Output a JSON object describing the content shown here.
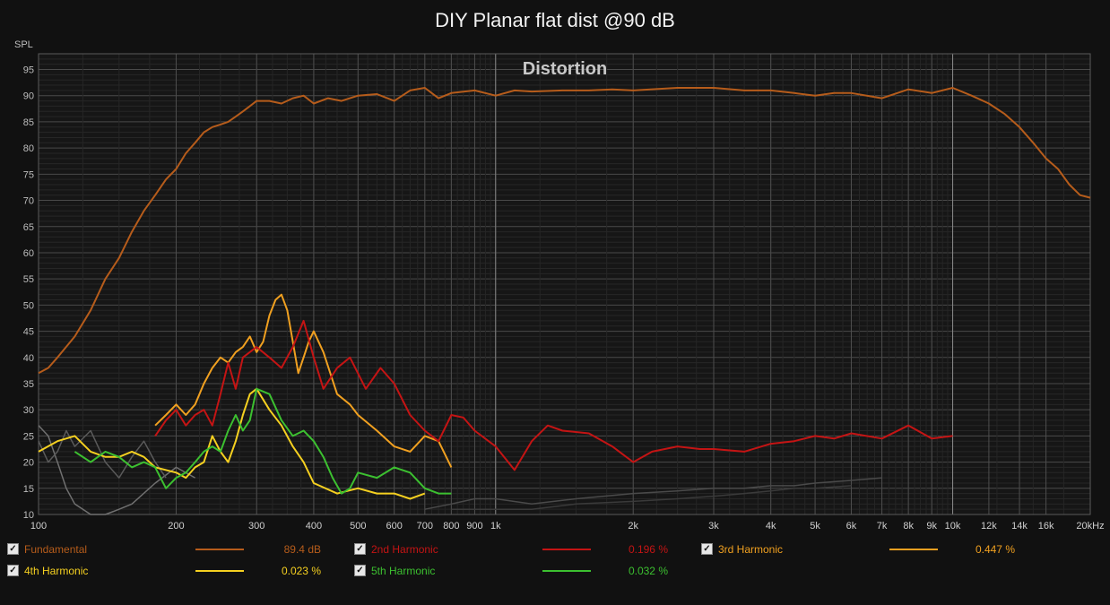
{
  "chart_data": {
    "type": "line",
    "title": "DIY Planar flat dist @90 dB",
    "annotation": "Distortion",
    "ylabel": "SPL",
    "x_scale": "log",
    "xlim": [
      100,
      20000
    ],
    "ylim": [
      10,
      98
    ],
    "grid": true,
    "x_ticks": [
      {
        "v": 100,
        "t": "100"
      },
      {
        "v": 200,
        "t": "200"
      },
      {
        "v": 300,
        "t": "300"
      },
      {
        "v": 400,
        "t": "400"
      },
      {
        "v": 500,
        "t": "500"
      },
      {
        "v": 600,
        "t": "600"
      },
      {
        "v": 700,
        "t": "700"
      },
      {
        "v": 800,
        "t": "800"
      },
      {
        "v": 900,
        "t": "900"
      },
      {
        "v": 1000,
        "t": "1k"
      },
      {
        "v": 2000,
        "t": "2k"
      },
      {
        "v": 3000,
        "t": "3k"
      },
      {
        "v": 4000,
        "t": "4k"
      },
      {
        "v": 5000,
        "t": "5k"
      },
      {
        "v": 6000,
        "t": "6k"
      },
      {
        "v": 7000,
        "t": "7k"
      },
      {
        "v": 8000,
        "t": "8k"
      },
      {
        "v": 9000,
        "t": "9k"
      },
      {
        "v": 10000,
        "t": "10k"
      },
      {
        "v": 12000,
        "t": "12k"
      },
      {
        "v": 14000,
        "t": "14k"
      },
      {
        "v": 16000,
        "t": "16k"
      },
      {
        "v": 20000,
        "t": "20kHz"
      }
    ],
    "y_ticks": [
      10,
      15,
      20,
      25,
      30,
      35,
      40,
      45,
      50,
      55,
      60,
      65,
      70,
      75,
      80,
      85,
      90,
      95
    ],
    "legend_position": "bottom",
    "series": [
      {
        "name": "Fundamental",
        "value": "89.4 dB",
        "color": "#b65c1b",
        "points": [
          [
            100,
            37
          ],
          [
            105,
            38
          ],
          [
            110,
            40
          ],
          [
            120,
            44
          ],
          [
            130,
            49
          ],
          [
            140,
            55
          ],
          [
            150,
            59
          ],
          [
            160,
            64
          ],
          [
            170,
            68
          ],
          [
            180,
            71
          ],
          [
            190,
            74
          ],
          [
            200,
            76
          ],
          [
            210,
            79
          ],
          [
            220,
            81
          ],
          [
            230,
            83
          ],
          [
            240,
            84
          ],
          [
            250,
            84.5
          ],
          [
            260,
            85
          ],
          [
            270,
            86
          ],
          [
            280,
            87
          ],
          [
            290,
            88
          ],
          [
            300,
            89
          ],
          [
            320,
            89
          ],
          [
            340,
            88.5
          ],
          [
            360,
            89.5
          ],
          [
            380,
            90
          ],
          [
            400,
            88.5
          ],
          [
            430,
            89.5
          ],
          [
            460,
            89
          ],
          [
            500,
            90
          ],
          [
            550,
            90.3
          ],
          [
            600,
            89
          ],
          [
            650,
            91
          ],
          [
            700,
            91.5
          ],
          [
            750,
            89.5
          ],
          [
            800,
            90.5
          ],
          [
            900,
            91
          ],
          [
            1000,
            90
          ],
          [
            1100,
            91
          ],
          [
            1200,
            90.8
          ],
          [
            1400,
            91
          ],
          [
            1600,
            91
          ],
          [
            1800,
            91.2
          ],
          [
            2000,
            91
          ],
          [
            2500,
            91.5
          ],
          [
            3000,
            91.5
          ],
          [
            3500,
            91
          ],
          [
            4000,
            91
          ],
          [
            4500,
            90.5
          ],
          [
            5000,
            90
          ],
          [
            5500,
            90.5
          ],
          [
            6000,
            90.5
          ],
          [
            7000,
            89.5
          ],
          [
            8000,
            91.2
          ],
          [
            9000,
            90.5
          ],
          [
            10000,
            91.5
          ],
          [
            11000,
            90
          ],
          [
            12000,
            88.5
          ],
          [
            13000,
            86.5
          ],
          [
            14000,
            84
          ],
          [
            15000,
            81
          ],
          [
            16000,
            78
          ],
          [
            17000,
            76
          ],
          [
            18000,
            73
          ],
          [
            19000,
            71
          ],
          [
            20000,
            70.5
          ]
        ]
      },
      {
        "name": "2nd Harmonic",
        "value": "0.196 %",
        "color": "#c41414",
        "points": [
          [
            180,
            25
          ],
          [
            190,
            28
          ],
          [
            200,
            30
          ],
          [
            210,
            27
          ],
          [
            220,
            29
          ],
          [
            230,
            30
          ],
          [
            240,
            27
          ],
          [
            250,
            33
          ],
          [
            260,
            39
          ],
          [
            270,
            34
          ],
          [
            280,
            40
          ],
          [
            300,
            42
          ],
          [
            320,
            40
          ],
          [
            340,
            38
          ],
          [
            360,
            42
          ],
          [
            380,
            47
          ],
          [
            400,
            40
          ],
          [
            420,
            34
          ],
          [
            450,
            38
          ],
          [
            480,
            40
          ],
          [
            520,
            34
          ],
          [
            560,
            38
          ],
          [
            600,
            35
          ],
          [
            650,
            29
          ],
          [
            700,
            26
          ],
          [
            750,
            24
          ],
          [
            800,
            29
          ],
          [
            850,
            28.5
          ],
          [
            900,
            26
          ],
          [
            1000,
            23
          ],
          [
            1100,
            18.5
          ],
          [
            1200,
            24
          ],
          [
            1300,
            27
          ],
          [
            1400,
            26
          ],
          [
            1600,
            25.5
          ],
          [
            1800,
            23
          ],
          [
            2000,
            20
          ],
          [
            2200,
            22
          ],
          [
            2500,
            23
          ],
          [
            2800,
            22.5
          ],
          [
            3000,
            22.5
          ],
          [
            3500,
            22
          ],
          [
            4000,
            23.5
          ],
          [
            4500,
            24
          ],
          [
            5000,
            25
          ],
          [
            5500,
            24.5
          ],
          [
            6000,
            25.5
          ],
          [
            7000,
            24.5
          ],
          [
            8000,
            27
          ],
          [
            9000,
            24.5
          ],
          [
            10000,
            25
          ]
        ]
      },
      {
        "name": "3rd Harmonic",
        "value": "0.447 %",
        "color": "#f0a020",
        "points": [
          [
            180,
            27
          ],
          [
            190,
            29
          ],
          [
            200,
            31
          ],
          [
            210,
            29
          ],
          [
            220,
            31
          ],
          [
            230,
            35
          ],
          [
            240,
            38
          ],
          [
            250,
            40
          ],
          [
            260,
            39
          ],
          [
            270,
            41
          ],
          [
            280,
            42
          ],
          [
            290,
            44
          ],
          [
            300,
            41
          ],
          [
            310,
            43
          ],
          [
            320,
            48
          ],
          [
            330,
            51
          ],
          [
            340,
            52
          ],
          [
            350,
            49
          ],
          [
            360,
            43
          ],
          [
            370,
            37
          ],
          [
            380,
            40
          ],
          [
            390,
            43
          ],
          [
            400,
            45
          ],
          [
            420,
            41
          ],
          [
            450,
            33
          ],
          [
            480,
            31
          ],
          [
            500,
            29
          ],
          [
            550,
            26
          ],
          [
            600,
            23
          ],
          [
            650,
            22
          ],
          [
            700,
            25
          ],
          [
            750,
            24
          ],
          [
            800,
            19
          ]
        ]
      },
      {
        "name": "4th Harmonic",
        "value": "0.023 %",
        "color": "#f5d020",
        "points": [
          [
            100,
            22
          ],
          [
            110,
            24
          ],
          [
            120,
            25
          ],
          [
            130,
            22
          ],
          [
            140,
            21
          ],
          [
            150,
            21
          ],
          [
            160,
            22
          ],
          [
            170,
            21
          ],
          [
            180,
            19
          ],
          [
            200,
            18
          ],
          [
            210,
            17
          ],
          [
            220,
            19
          ],
          [
            230,
            20
          ],
          [
            240,
            25
          ],
          [
            250,
            22
          ],
          [
            260,
            20
          ],
          [
            270,
            24
          ],
          [
            280,
            29
          ],
          [
            290,
            33
          ],
          [
            300,
            34
          ],
          [
            320,
            30
          ],
          [
            340,
            27
          ],
          [
            360,
            23
          ],
          [
            380,
            20
          ],
          [
            400,
            16
          ],
          [
            450,
            14
          ],
          [
            500,
            15
          ],
          [
            550,
            14
          ],
          [
            600,
            14
          ],
          [
            650,
            13
          ],
          [
            700,
            14
          ]
        ]
      },
      {
        "name": "5th Harmonic",
        "value": "0.032 %",
        "color": "#3cc030",
        "points": [
          [
            120,
            22
          ],
          [
            130,
            20
          ],
          [
            140,
            22
          ],
          [
            150,
            21
          ],
          [
            160,
            19
          ],
          [
            170,
            20
          ],
          [
            180,
            19
          ],
          [
            190,
            15
          ],
          [
            200,
            17
          ],
          [
            210,
            18
          ],
          [
            220,
            20
          ],
          [
            230,
            22
          ],
          [
            240,
            23
          ],
          [
            250,
            22
          ],
          [
            260,
            26
          ],
          [
            270,
            29
          ],
          [
            280,
            26
          ],
          [
            290,
            28
          ],
          [
            300,
            34
          ],
          [
            320,
            33
          ],
          [
            340,
            28
          ],
          [
            360,
            25
          ],
          [
            380,
            26
          ],
          [
            400,
            24
          ],
          [
            420,
            21
          ],
          [
            440,
            17
          ],
          [
            460,
            14
          ],
          [
            480,
            15
          ],
          [
            500,
            18
          ],
          [
            550,
            17
          ],
          [
            600,
            19
          ],
          [
            650,
            18
          ],
          [
            700,
            15
          ],
          [
            750,
            14
          ],
          [
            800,
            14
          ]
        ]
      }
    ],
    "extra_series": [
      {
        "color": "#707070",
        "points": [
          [
            100,
            27
          ],
          [
            105,
            25
          ],
          [
            110,
            20
          ],
          [
            115,
            15
          ],
          [
            120,
            12
          ],
          [
            130,
            10
          ],
          [
            140,
            10
          ],
          [
            150,
            11
          ],
          [
            160,
            12
          ],
          [
            180,
            16
          ],
          [
            200,
            19
          ],
          [
            220,
            17
          ]
        ]
      },
      {
        "color": "#5a5a5a",
        "points": [
          [
            100,
            24
          ],
          [
            105,
            20
          ],
          [
            110,
            22
          ],
          [
            115,
            26
          ],
          [
            120,
            23
          ],
          [
            130,
            26
          ],
          [
            140,
            20
          ],
          [
            150,
            17
          ],
          [
            160,
            21
          ],
          [
            170,
            24
          ],
          [
            180,
            20
          ],
          [
            190,
            17
          ]
        ]
      },
      {
        "color": "#4a4a4a",
        "points": [
          [
            700,
            11
          ],
          [
            800,
            12
          ],
          [
            900,
            13
          ],
          [
            1000,
            13
          ],
          [
            1200,
            12
          ],
          [
            1500,
            13
          ],
          [
            2000,
            14
          ],
          [
            2500,
            14.5
          ],
          [
            3000,
            15
          ],
          [
            3500,
            15
          ],
          [
            4000,
            15.5
          ],
          [
            4500,
            15.5
          ],
          [
            5000,
            16
          ],
          [
            6000,
            16.5
          ],
          [
            7000,
            17
          ]
        ]
      },
      {
        "color": "#3a3a3a",
        "points": [
          [
            800,
            11
          ],
          [
            1000,
            11
          ],
          [
            1200,
            11
          ],
          [
            1500,
            12
          ],
          [
            2000,
            12.5
          ],
          [
            2500,
            13
          ],
          [
            3000,
            13.5
          ],
          [
            3500,
            14
          ],
          [
            4000,
            14.5
          ],
          [
            4500,
            15
          ],
          [
            5000,
            15
          ],
          [
            6000,
            15.5
          ]
        ]
      }
    ]
  }
}
